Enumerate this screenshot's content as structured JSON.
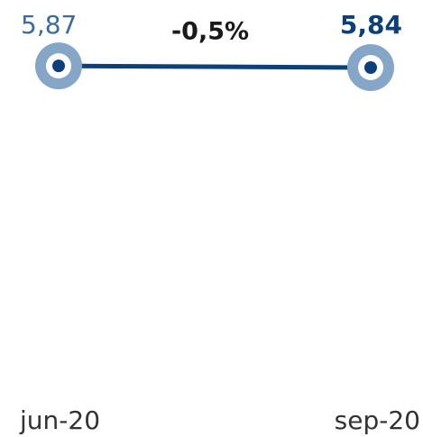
{
  "chart_data": {
    "type": "line",
    "categories": [
      "jun-20",
      "sep-20"
    ],
    "values": [
      5.87,
      5.84
    ],
    "value_labels": [
      "5,87",
      "5,84"
    ],
    "change_label": "-0,5%",
    "ylim": [
      0,
      6
    ],
    "color": "#0d3f78",
    "halo_color": "#86a6c8",
    "first_label_color": "#3c6b9c"
  }
}
